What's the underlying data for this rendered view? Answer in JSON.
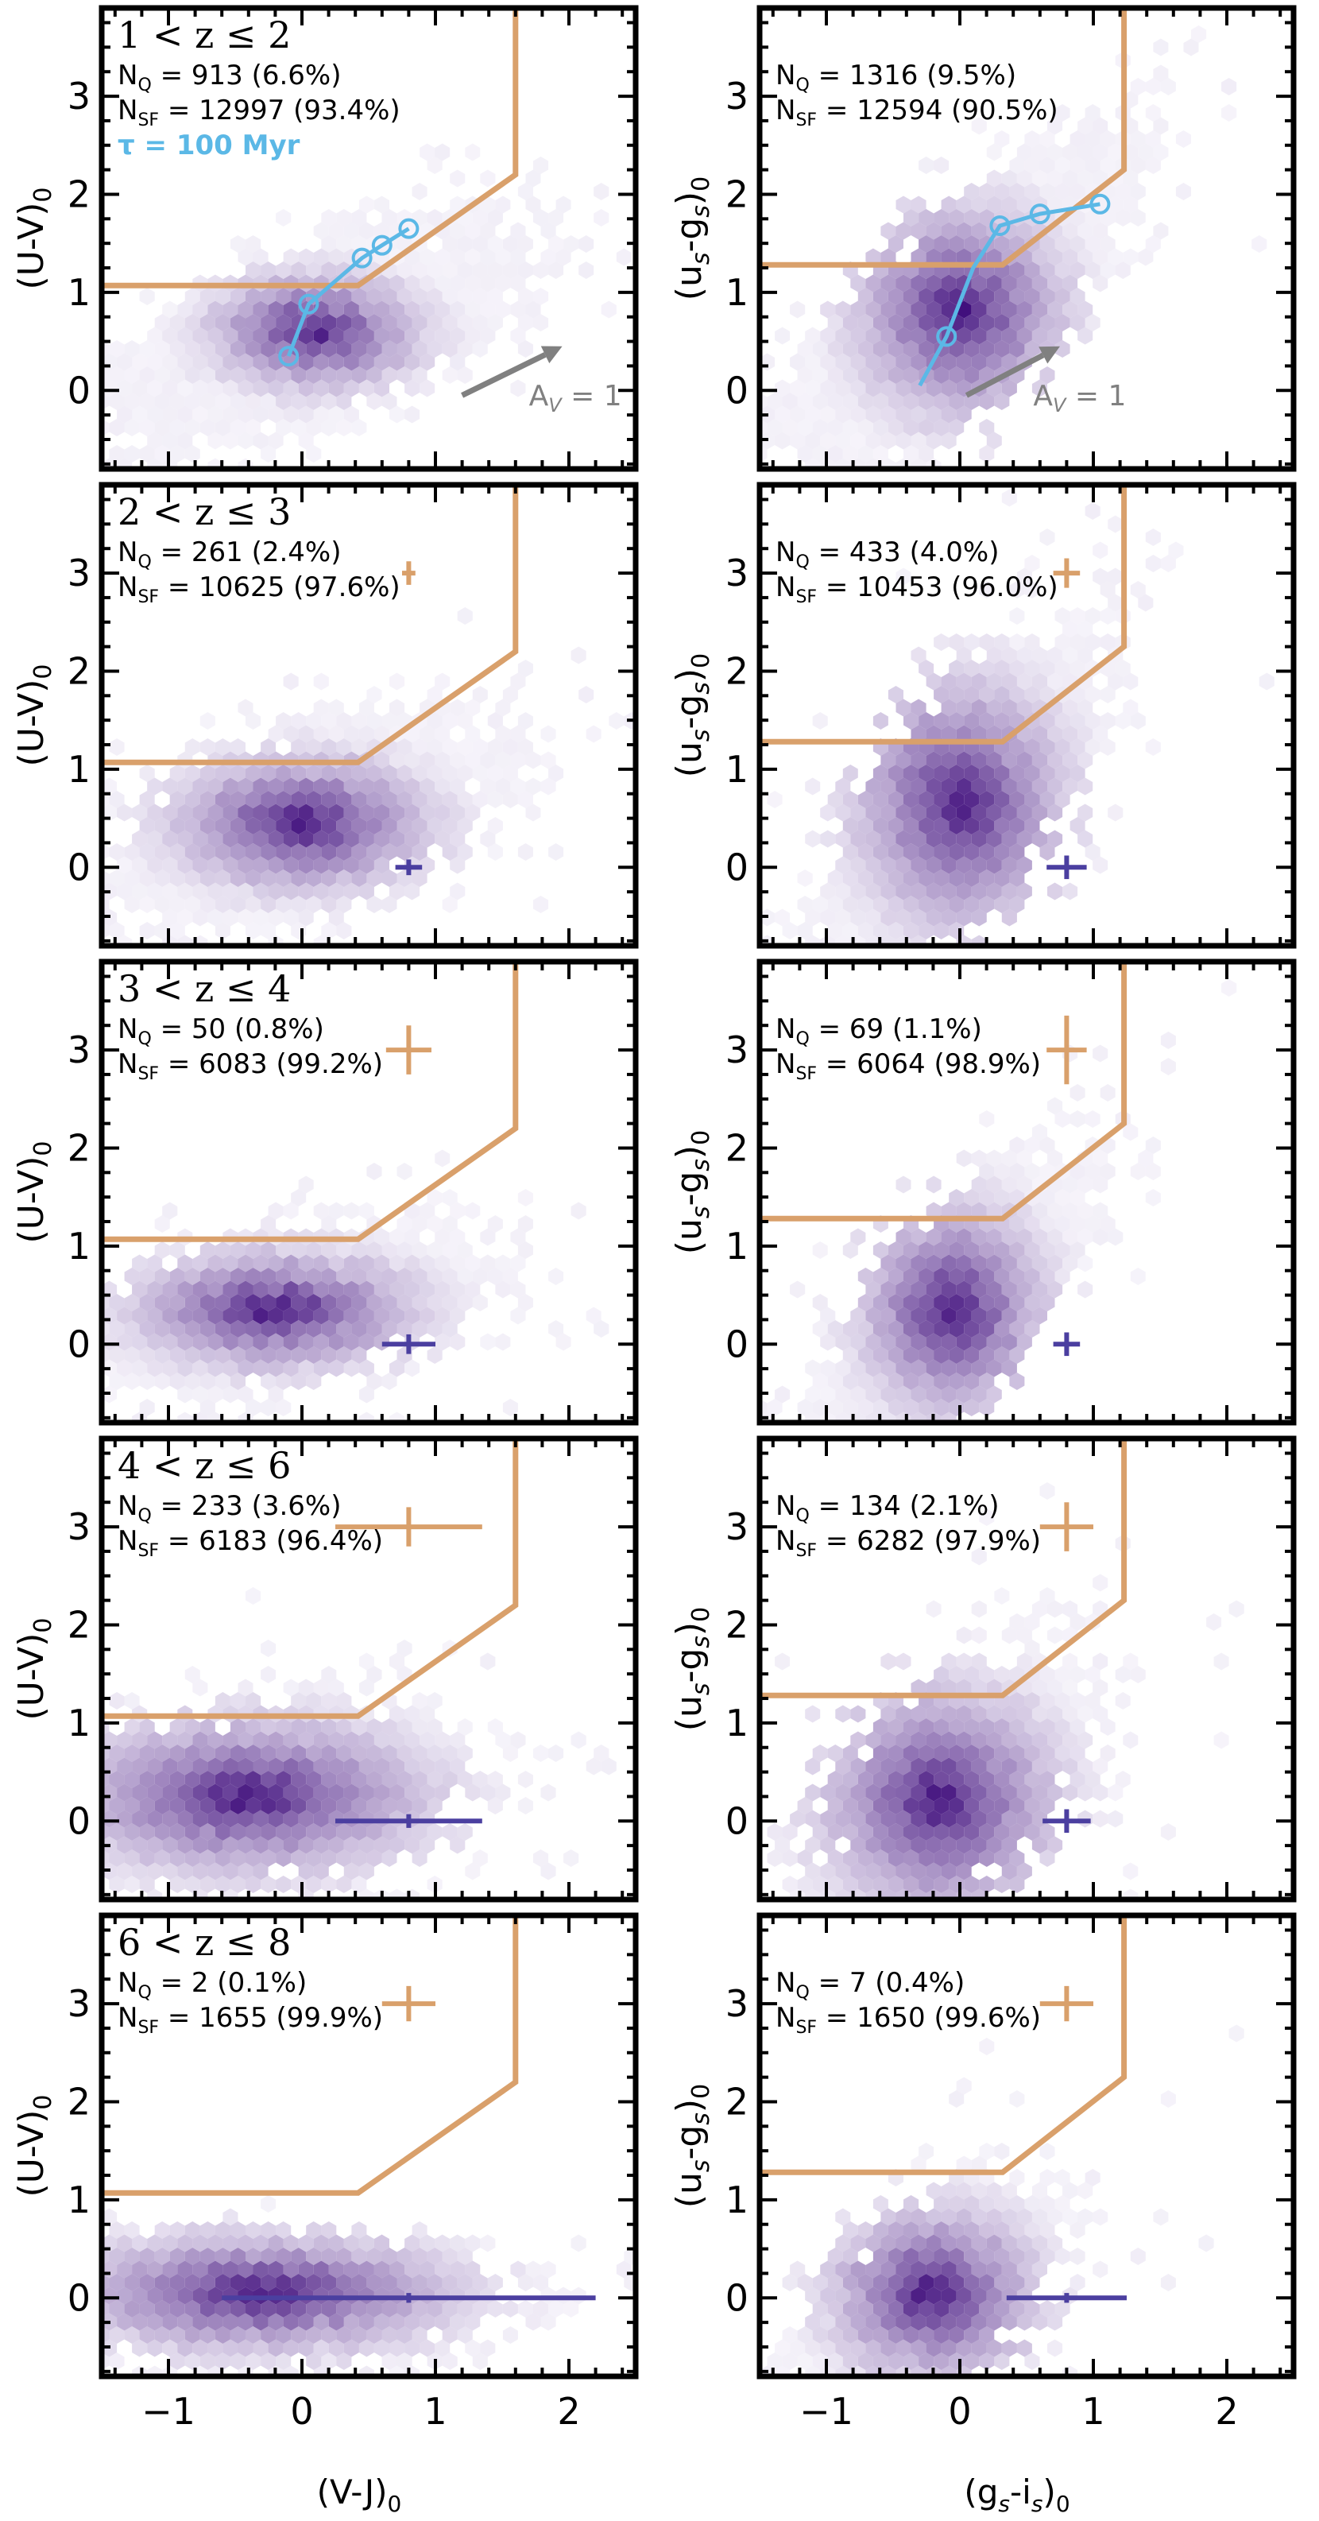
{
  "figure": {
    "xlabels": [
      "(V-J)",
      "(g",
      "s",
      "-i",
      "s",
      ")"
    ],
    "colors": {
      "boundary": "#D9A06B",
      "tau_track": "#5BB8E6",
      "av_arrow": "#808080",
      "errorbar_sf": "#4B3FA0",
      "errorbar_q": "#D9A06B",
      "hex_dark": "#3D0A7A",
      "hex_light": "#EEEAF6"
    }
  },
  "chart_data": [
    {
      "type": "scatter",
      "panel": "row1-left",
      "redshift_label": "1 < z ≤ 2",
      "n_q": "913 (6.6%)",
      "n_sf": "12997 (93.4%)",
      "ylabel": "(U-V)",
      "xlabel": "(V-J)",
      "xlim": [
        -1.5,
        2.5
      ],
      "ylim": [
        -0.8,
        3.9
      ],
      "xticks": [
        -1,
        0,
        1,
        2
      ],
      "yticks": [
        0,
        1,
        2,
        3
      ],
      "boundary": [
        [
          -1.5,
          1.07
        ],
        [
          0.42,
          1.07
        ],
        [
          1.6,
          2.2
        ],
        [
          1.6,
          3.9
        ]
      ],
      "density_center": [
        0.1,
        0.6
      ],
      "density_sigma": [
        0.4,
        0.3
      ],
      "density_corr": 0.6,
      "n_hex": 420,
      "tau_label": "τ = 100 Myr",
      "tau_track": [
        [
          -0.1,
          0.35
        ],
        [
          0.05,
          0.88
        ],
        [
          0.28,
          1.15
        ],
        [
          0.45,
          1.35
        ],
        [
          0.6,
          1.48
        ],
        [
          0.8,
          1.65
        ]
      ],
      "tau_markers": [
        [
          -0.1,
          0.35
        ],
        [
          0.05,
          0.88
        ],
        [
          0.45,
          1.35
        ],
        [
          0.6,
          1.48
        ],
        [
          0.8,
          1.65
        ]
      ],
      "av_label": "A",
      "av_sub": "V",
      "av_value": " = 1",
      "errorbars": []
    },
    {
      "type": "scatter",
      "panel": "row1-right",
      "n_q": "1316 (9.5%)",
      "n_sf": "12594 (90.5%)",
      "ylabel": "(u",
      "xlabel": "(g",
      "xlim": [
        -1.5,
        2.5
      ],
      "ylim": [
        -0.8,
        3.9
      ],
      "xticks": [
        -1,
        0,
        1,
        2
      ],
      "yticks": [
        0,
        1,
        2,
        3
      ],
      "boundary": [
        [
          -1.5,
          1.28
        ],
        [
          0.32,
          1.28
        ],
        [
          1.23,
          2.25
        ],
        [
          1.23,
          3.9
        ]
      ],
      "density_center": [
        0.0,
        0.8
      ],
      "density_sigma": [
        0.4,
        0.55
      ],
      "density_corr": 0.75,
      "n_hex": 460,
      "tau_track": [
        [
          -0.3,
          0.05
        ],
        [
          -0.1,
          0.55
        ],
        [
          0.1,
          1.25
        ],
        [
          0.3,
          1.68
        ],
        [
          0.6,
          1.8
        ],
        [
          1.05,
          1.9
        ]
      ],
      "tau_markers": [
        [
          -0.1,
          0.55
        ],
        [
          0.3,
          1.68
        ],
        [
          0.6,
          1.8
        ],
        [
          1.05,
          1.9
        ]
      ],
      "av_label": "A",
      "av_sub": "V",
      "av_value": " = 1",
      "errorbars": []
    },
    {
      "type": "scatter",
      "panel": "row2-left",
      "redshift_label": "2 < z ≤ 3",
      "n_q": "261 (2.4%)",
      "n_sf": "10625 (97.6%)",
      "ylabel": "(U-V)",
      "xlabel": "(V-J)",
      "xlim": [
        -1.5,
        2.5
      ],
      "ylim": [
        -0.8,
        3.9
      ],
      "xticks": [
        -1,
        0,
        1,
        2
      ],
      "yticks": [
        0,
        1,
        2,
        3
      ],
      "boundary": [
        [
          -1.5,
          1.07
        ],
        [
          0.42,
          1.07
        ],
        [
          1.6,
          2.2
        ],
        [
          1.6,
          3.9
        ]
      ],
      "density_center": [
        0.0,
        0.45
      ],
      "density_sigma": [
        0.5,
        0.35
      ],
      "density_corr": 0.55,
      "n_hex": 430,
      "errorbars": [
        {
          "x": 0.8,
          "y": 3.0,
          "xerr": 0.05,
          "yerr": 0.12,
          "kind": "q"
        },
        {
          "x": 0.8,
          "y": 0.0,
          "xerr": 0.1,
          "yerr": 0.08,
          "kind": "sf"
        }
      ]
    },
    {
      "type": "scatter",
      "panel": "row2-right",
      "n_q": "433 (4.0%)",
      "n_sf": "10453 (96.0%)",
      "ylabel": "(u",
      "xlabel": "(g",
      "xlim": [
        -1.5,
        2.5
      ],
      "ylim": [
        -0.8,
        3.9
      ],
      "xticks": [
        -1,
        0,
        1,
        2
      ],
      "yticks": [
        0,
        1,
        2,
        3
      ],
      "boundary": [
        [
          -1.5,
          1.28
        ],
        [
          0.32,
          1.28
        ],
        [
          1.23,
          2.25
        ],
        [
          1.23,
          3.9
        ]
      ],
      "density_center": [
        0.0,
        0.65
      ],
      "density_sigma": [
        0.4,
        0.65
      ],
      "density_corr": 0.7,
      "n_hex": 430,
      "errorbars": [
        {
          "x": 0.8,
          "y": 3.0,
          "xerr": 0.1,
          "yerr": 0.15,
          "kind": "q"
        },
        {
          "x": 0.8,
          "y": 0.0,
          "xerr": 0.15,
          "yerr": 0.12,
          "kind": "sf"
        }
      ]
    },
    {
      "type": "scatter",
      "panel": "row3-left",
      "redshift_label": "3 < z ≤ 4",
      "n_q": "50 (0.8%)",
      "n_sf": "6083 (99.2%)",
      "ylabel": "(U-V)",
      "xlabel": "(V-J)",
      "xlim": [
        -1.5,
        2.5
      ],
      "ylim": [
        -0.8,
        3.9
      ],
      "xticks": [
        -1,
        0,
        1,
        2
      ],
      "yticks": [
        0,
        1,
        2,
        3
      ],
      "boundary": [
        [
          -1.5,
          1.07
        ],
        [
          0.42,
          1.07
        ],
        [
          1.6,
          2.2
        ],
        [
          1.6,
          3.9
        ]
      ],
      "density_center": [
        -0.2,
        0.35
      ],
      "density_sigma": [
        0.55,
        0.3
      ],
      "density_corr": 0.4,
      "n_hex": 380,
      "errorbars": [
        {
          "x": 0.8,
          "y": 3.0,
          "xerr": 0.17,
          "yerr": 0.25,
          "kind": "q"
        },
        {
          "x": 0.8,
          "y": 0.0,
          "xerr": 0.2,
          "yerr": 0.1,
          "kind": "sf"
        }
      ]
    },
    {
      "type": "scatter",
      "panel": "row3-right",
      "n_q": "69 (1.1%)",
      "n_sf": "6064 (98.9%)",
      "ylabel": "(u",
      "xlabel": "(g",
      "xlim": [
        -1.5,
        2.5
      ],
      "ylim": [
        -0.8,
        3.9
      ],
      "xticks": [
        -1,
        0,
        1,
        2
      ],
      "yticks": [
        0,
        1,
        2,
        3
      ],
      "boundary": [
        [
          -1.5,
          1.28
        ],
        [
          0.32,
          1.28
        ],
        [
          1.23,
          2.25
        ],
        [
          1.23,
          3.9
        ]
      ],
      "density_center": [
        -0.05,
        0.35
      ],
      "density_sigma": [
        0.35,
        0.55
      ],
      "density_corr": 0.7,
      "n_hex": 360,
      "errorbars": [
        {
          "x": 0.8,
          "y": 3.0,
          "xerr": 0.15,
          "yerr": 0.35,
          "kind": "q"
        },
        {
          "x": 0.8,
          "y": 0.0,
          "xerr": 0.1,
          "yerr": 0.12,
          "kind": "sf"
        }
      ]
    },
    {
      "type": "scatter",
      "panel": "row4-left",
      "redshift_label": "4 < z ≤ 6",
      "n_q": "233 (3.6%)",
      "n_sf": "6183 (96.4%)",
      "ylabel": "(U-V)",
      "xlabel": "(V-J)",
      "xlim": [
        -1.5,
        2.5
      ],
      "ylim": [
        -0.8,
        3.9
      ],
      "xticks": [
        -1,
        0,
        1,
        2
      ],
      "yticks": [
        0,
        1,
        2,
        3
      ],
      "boundary": [
        [
          -1.5,
          1.07
        ],
        [
          0.42,
          1.07
        ],
        [
          1.6,
          2.2
        ],
        [
          1.6,
          3.9
        ]
      ],
      "density_center": [
        -0.4,
        0.25
      ],
      "density_sigma": [
        0.7,
        0.4
      ],
      "density_corr": 0.2,
      "n_hex": 470,
      "errorbars": [
        {
          "x": 0.8,
          "y": 3.0,
          "xerr": 0.55,
          "yerr": 0.2,
          "kind": "q"
        },
        {
          "x": 0.8,
          "y": 0.0,
          "xerr": 0.55,
          "yerr": 0.07,
          "kind": "sf"
        }
      ]
    },
    {
      "type": "scatter",
      "panel": "row4-right",
      "n_q": "134 (2.1%)",
      "n_sf": "6282 (97.9%)",
      "ylabel": "(u",
      "xlabel": "(g",
      "xlim": [
        -1.5,
        2.5
      ],
      "ylim": [
        -0.8,
        3.9
      ],
      "xticks": [
        -1,
        0,
        1,
        2
      ],
      "yticks": [
        0,
        1,
        2,
        3
      ],
      "boundary": [
        [
          -1.5,
          1.28
        ],
        [
          0.32,
          1.28
        ],
        [
          1.23,
          2.25
        ],
        [
          1.23,
          3.9
        ]
      ],
      "density_center": [
        -0.15,
        0.2
      ],
      "density_sigma": [
        0.45,
        0.6
      ],
      "density_corr": 0.55,
      "n_hex": 400,
      "errorbars": [
        {
          "x": 0.8,
          "y": 3.0,
          "xerr": 0.2,
          "yerr": 0.25,
          "kind": "q"
        },
        {
          "x": 0.8,
          "y": 0.0,
          "xerr": 0.18,
          "yerr": 0.12,
          "kind": "sf"
        }
      ]
    },
    {
      "type": "scatter",
      "panel": "row5-left",
      "redshift_label": "6 < z ≤ 8",
      "n_q": "2 (0.1%)",
      "n_sf": "1655 (99.9%)",
      "ylabel": "(U-V)",
      "xlabel": "(V-J)",
      "xlim": [
        -1.5,
        2.5
      ],
      "ylim": [
        -0.8,
        3.9
      ],
      "xticks": [
        -1,
        0,
        1,
        2
      ],
      "yticks": [
        0,
        1,
        2,
        3
      ],
      "boundary": [
        [
          -1.5,
          1.07
        ],
        [
          0.42,
          1.07
        ],
        [
          1.6,
          2.2
        ],
        [
          1.6,
          3.9
        ]
      ],
      "density_center": [
        -0.3,
        0.05
      ],
      "density_sigma": [
        0.75,
        0.3
      ],
      "density_corr": 0.0,
      "n_hex": 360,
      "clip_top": 0.7,
      "errorbars": [
        {
          "x": 0.8,
          "y": 3.0,
          "xerr": 0.2,
          "yerr": 0.18,
          "kind": "q"
        },
        {
          "x": 0.8,
          "y": 0.0,
          "xerr": 1.4,
          "yerr": 0.05,
          "kind": "sf"
        }
      ]
    },
    {
      "type": "scatter",
      "panel": "row5-right",
      "n_q": "7 (0.4%)",
      "n_sf": "1650 (99.6%)",
      "ylabel": "(u",
      "xlabel": "(g",
      "xlim": [
        -1.5,
        2.5
      ],
      "ylim": [
        -0.8,
        3.9
      ],
      "xticks": [
        -1,
        0,
        1,
        2
      ],
      "yticks": [
        0,
        1,
        2,
        3
      ],
      "boundary": [
        [
          -1.5,
          1.28
        ],
        [
          0.32,
          1.28
        ],
        [
          1.23,
          2.25
        ],
        [
          1.23,
          3.9
        ]
      ],
      "density_center": [
        -0.2,
        0.05
      ],
      "density_sigma": [
        0.4,
        0.45
      ],
      "density_corr": 0.5,
      "n_hex": 300,
      "errorbars": [
        {
          "x": 0.8,
          "y": 3.0,
          "xerr": 0.2,
          "yerr": 0.18,
          "kind": "q"
        },
        {
          "x": 0.8,
          "y": 0.0,
          "xerr": 0.45,
          "yerr": 0.05,
          "kind": "sf"
        }
      ]
    }
  ]
}
